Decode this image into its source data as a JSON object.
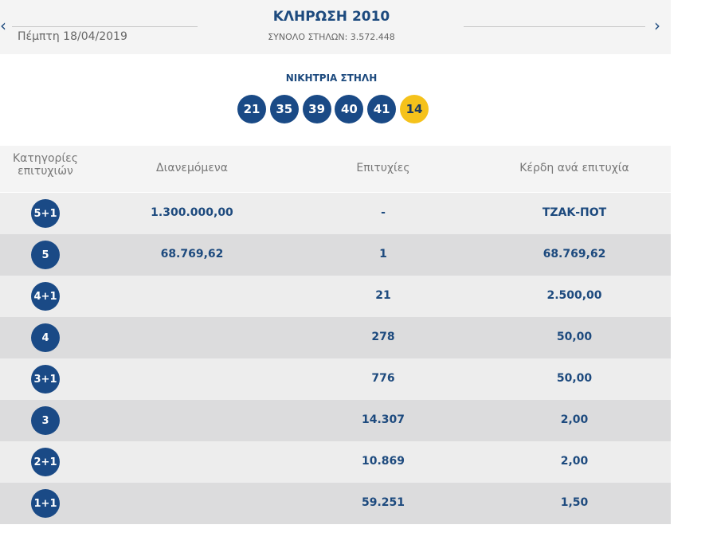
{
  "header": {
    "date": "Πέμπτη 18/04/2019",
    "title": "ΚΛΗΡΩΣΗ 2010",
    "subtitle": "ΣΥΝΟΛΟ ΣΤΗΛΩΝ: 3.572.448"
  },
  "winning": {
    "label": "ΝΙΚΗΤΡΙΑ ΣΤΗΛΗ",
    "numbers": [
      "21",
      "35",
      "39",
      "40",
      "41"
    ],
    "bonus": "14"
  },
  "table": {
    "headers": [
      "Κατηγορίες επιτυχιών",
      "Διανεμόμενα",
      "Επιτυχίες",
      "Κέρδη ανά επιτυχία"
    ],
    "rows": [
      {
        "category": "5+1",
        "pool": "1.300.000,00",
        "winners": "-",
        "prize": "ΤΖΑΚ-ΠΟΤ"
      },
      {
        "category": "5",
        "pool": "68.769,62",
        "winners": "1",
        "prize": "68.769,62"
      },
      {
        "category": "4+1",
        "winners": "21",
        "prize": "2.500,00"
      },
      {
        "category": "4",
        "winners": "278",
        "prize": "50,00"
      },
      {
        "category": "3+1",
        "winners": "776",
        "prize": "50,00"
      },
      {
        "category": "3",
        "winners": "14.307",
        "prize": "2,00"
      },
      {
        "category": "2+1",
        "winners": "10.869",
        "prize": "2,00"
      },
      {
        "category": "1+1",
        "winners": "59.251",
        "prize": "1,50"
      }
    ]
  }
}
